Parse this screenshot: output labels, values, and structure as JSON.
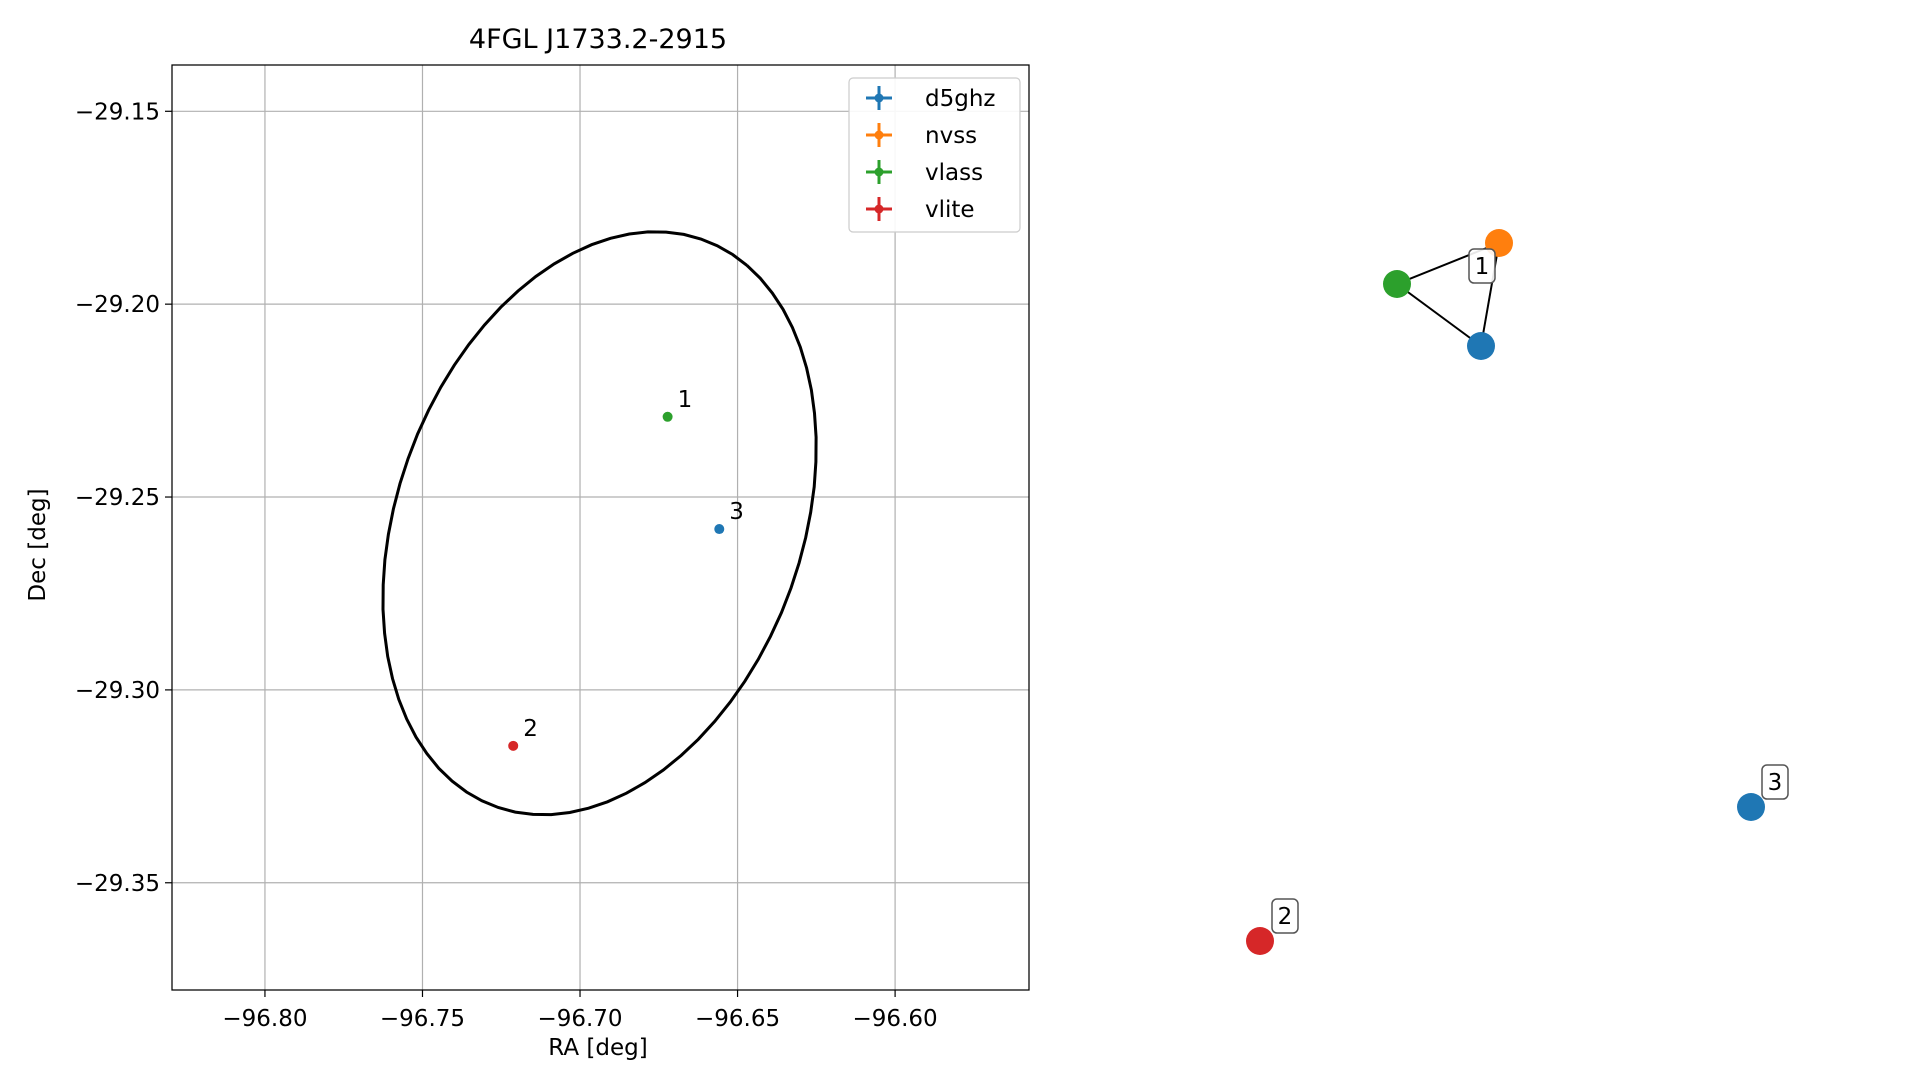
{
  "chart_data": [
    {
      "type": "scatter",
      "title": "4FGL J1733.2-2915",
      "xlabel": "RA [deg]",
      "ylabel": "Dec [deg]",
      "xlim": [
        -96.8295,
        -96.5575
      ],
      "ylim": [
        -29.3778,
        -29.138
      ],
      "xticks": [
        -96.8,
        -96.75,
        -96.7,
        -96.65,
        -96.6
      ],
      "xtick_labels": [
        "−96.80",
        "−96.75",
        "−96.70",
        "−96.65",
        "−96.60"
      ],
      "yticks": [
        -29.15,
        -29.2,
        -29.25,
        -29.3,
        -29.35
      ],
      "ytick_labels": [
        "−29.15",
        "−29.20",
        "−29.25",
        "−29.30",
        "−29.35"
      ],
      "grid": true,
      "legend_position": "top-right",
      "series": [
        {
          "name": "d5ghz",
          "color": "#1f77b4",
          "points": [
            {
              "x": -96.6558,
              "y": -29.2583,
              "label": "3"
            }
          ]
        },
        {
          "name": "nvss",
          "color": "#ff7f0e",
          "points": []
        },
        {
          "name": "vlass",
          "color": "#2ca02c",
          "points": [
            {
              "x": -96.6722,
              "y": -29.2292,
              "label": "1"
            }
          ]
        },
        {
          "name": "vlite",
          "color": "#d62728",
          "points": [
            {
              "x": -96.7212,
              "y": -29.3145,
              "label": "2"
            }
          ]
        }
      ],
      "ellipse": {
        "center_x": -96.6938,
        "center_y": -29.2568,
        "semi_major_deg": 0.0816,
        "semi_minor_deg": 0.0615,
        "angle_deg": 55,
        "color": "#000000"
      }
    },
    {
      "type": "network",
      "nodes": [
        {
          "id": "nvss",
          "color": "#ff7f0e"
        },
        {
          "id": "vlass",
          "color": "#2ca02c"
        },
        {
          "id": "d5ghz",
          "color": "#1f77b4"
        },
        {
          "id": "d5ghz3",
          "color": "#1f77b4"
        },
        {
          "id": "vlite2",
          "color": "#d62728"
        }
      ],
      "edges": [
        [
          "nvss",
          "vlass"
        ],
        [
          "vlass",
          "d5ghz"
        ],
        [
          "nvss",
          "d5ghz"
        ]
      ],
      "labels": [
        {
          "text": "1",
          "group": [
            "nvss",
            "vlass",
            "d5ghz"
          ]
        },
        {
          "text": "2",
          "group": [
            "vlite2"
          ]
        },
        {
          "text": "3",
          "group": [
            "d5ghz3"
          ]
        }
      ]
    }
  ]
}
